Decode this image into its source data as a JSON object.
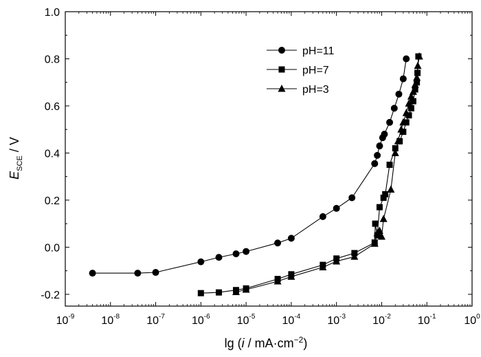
{
  "chart_data": {
    "type": "scatter",
    "x_scale": "log",
    "xlim": [
      1e-09,
      1
    ],
    "ylim": [
      -0.25,
      1.0
    ],
    "x_ticks": [
      1e-09,
      1e-08,
      1e-07,
      1e-06,
      1e-05,
      0.0001,
      0.001,
      0.01,
      0.1,
      1
    ],
    "x_tick_base": "10",
    "x_tick_exponents": [
      "-9",
      "-8",
      "-7",
      "-6",
      "-5",
      "-4",
      "-3",
      "-2",
      "-1",
      "0"
    ],
    "y_ticks": [
      -0.2,
      0.0,
      0.2,
      0.4,
      0.6,
      0.8,
      1.0
    ],
    "y_tick_labels": [
      "-0.2",
      "0.0",
      "0.2",
      "0.4",
      "0.6",
      "0.8",
      "1.0"
    ],
    "xlabel": {
      "prefix": "lg (",
      "var": "i",
      "unit": " / mA·cm",
      "sup": "−2",
      "suffix": ")"
    },
    "ylabel": {
      "var": "E",
      "sub": "SCE",
      "unit": " / V"
    },
    "grid": false,
    "legend_position": "top-right",
    "series": [
      {
        "name": "pH=11",
        "marker": "circle",
        "points": [
          [
            4e-09,
            -0.11
          ],
          [
            4e-08,
            -0.11
          ],
          [
            1e-07,
            -0.107
          ],
          [
            1e-06,
            -0.062
          ],
          [
            2.5e-06,
            -0.043
          ],
          [
            6e-06,
            -0.028
          ],
          [
            1e-05,
            -0.018
          ],
          [
            5e-05,
            0.018
          ],
          [
            0.0001,
            0.038
          ],
          [
            0.0005,
            0.13
          ],
          [
            0.001,
            0.165
          ],
          [
            0.0022,
            0.21
          ],
          [
            0.007,
            0.355
          ],
          [
            0.008,
            0.39
          ],
          [
            0.009,
            0.43
          ],
          [
            0.0105,
            0.465
          ],
          [
            0.0115,
            0.48
          ],
          [
            0.015,
            0.53
          ],
          [
            0.019,
            0.59
          ],
          [
            0.024,
            0.65
          ],
          [
            0.03,
            0.715
          ],
          [
            0.035,
            0.8
          ]
        ]
      },
      {
        "name": "pH=7",
        "marker": "square",
        "points": [
          [
            1e-06,
            -0.195
          ],
          [
            2.5e-06,
            -0.192
          ],
          [
            6e-06,
            -0.182
          ],
          [
            1e-05,
            -0.175
          ],
          [
            5e-05,
            -0.135
          ],
          [
            0.0001,
            -0.115
          ],
          [
            0.0005,
            -0.075
          ],
          [
            0.001,
            -0.048
          ],
          [
            0.0025,
            -0.025
          ],
          [
            0.007,
            0.02
          ],
          [
            0.0072,
            0.1
          ],
          [
            0.008,
            0.05
          ],
          [
            0.009,
            0.17
          ],
          [
            0.011,
            0.21
          ],
          [
            0.012,
            0.225
          ],
          [
            0.015,
            0.35
          ],
          [
            0.02,
            0.42
          ],
          [
            0.025,
            0.45
          ],
          [
            0.03,
            0.49
          ],
          [
            0.035,
            0.53
          ],
          [
            0.04,
            0.56
          ],
          [
            0.045,
            0.59
          ],
          [
            0.05,
            0.62
          ],
          [
            0.055,
            0.67
          ],
          [
            0.06,
            0.7
          ],
          [
            0.062,
            0.74
          ],
          [
            0.065,
            0.81
          ]
        ]
      },
      {
        "name": "pH=3",
        "marker": "triangle",
        "points": [
          [
            6e-06,
            -0.19
          ],
          [
            1e-05,
            -0.18
          ],
          [
            5e-05,
            -0.145
          ],
          [
            0.0001,
            -0.125
          ],
          [
            0.0005,
            -0.085
          ],
          [
            0.001,
            -0.06
          ],
          [
            0.0025,
            -0.04
          ],
          [
            0.007,
            0.015
          ],
          [
            0.008,
            0.06
          ],
          [
            0.009,
            0.07
          ],
          [
            0.01,
            0.045
          ],
          [
            0.011,
            0.12
          ],
          [
            0.016,
            0.245
          ],
          [
            0.02,
            0.4
          ],
          [
            0.023,
            0.45
          ],
          [
            0.027,
            0.5
          ],
          [
            0.03,
            0.53
          ],
          [
            0.035,
            0.57
          ],
          [
            0.04,
            0.61
          ],
          [
            0.045,
            0.64
          ],
          [
            0.05,
            0.66
          ],
          [
            0.055,
            0.69
          ],
          [
            0.06,
            0.72
          ],
          [
            0.063,
            0.77
          ],
          [
            0.068,
            0.81
          ]
        ]
      }
    ]
  }
}
